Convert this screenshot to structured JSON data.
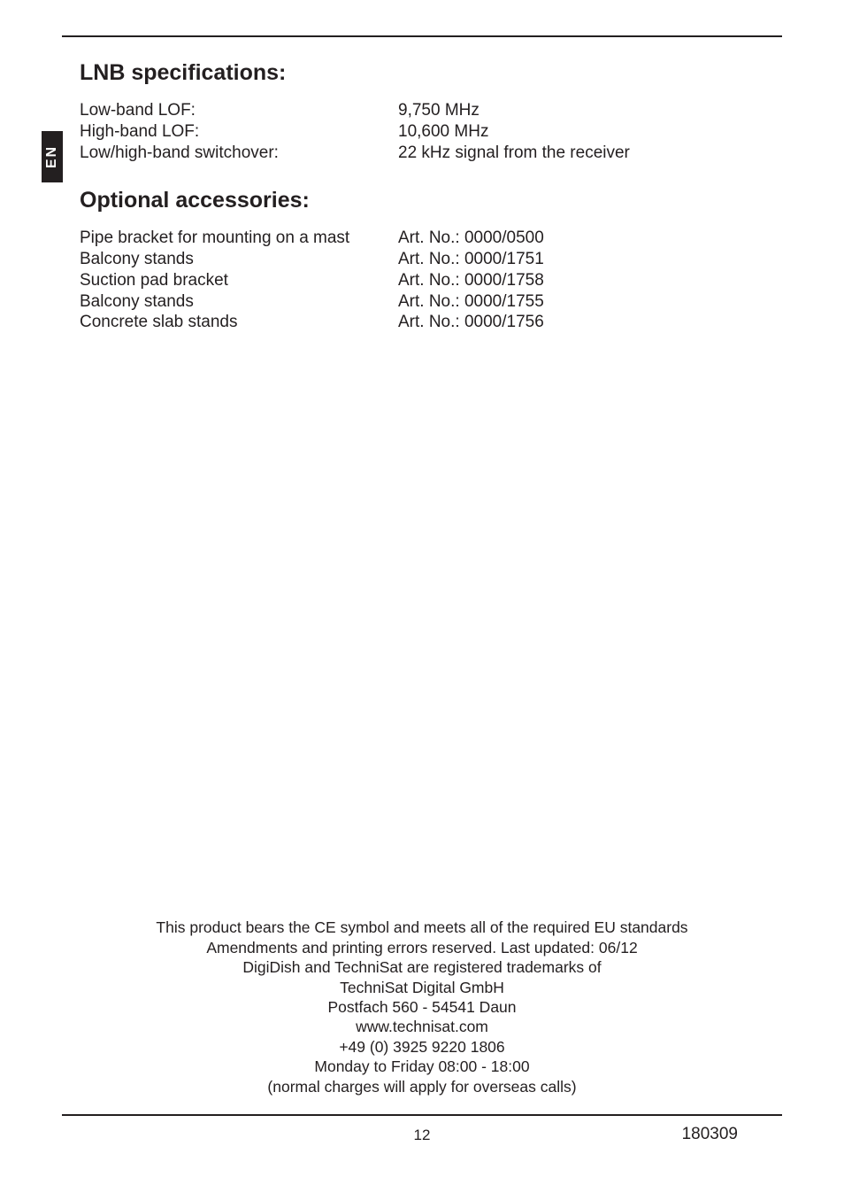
{
  "sideTab": "EN",
  "sections": {
    "lnb": {
      "title": "LNB specifications:",
      "rows": [
        {
          "label": "Low-band LOF:",
          "value": "9,750 MHz"
        },
        {
          "label": "High-band LOF:",
          "value": "10,600 MHz"
        },
        {
          "label": "Low/high-band switchover:",
          "value": "22 kHz signal from the receiver"
        }
      ]
    },
    "accessories": {
      "title": "Optional accessories:",
      "rows": [
        {
          "label": "Pipe bracket for mounting on a mast",
          "value": "Art. No.: 0000/0500"
        },
        {
          "label": "Balcony stands",
          "value": "Art. No.: 0000/1751"
        },
        {
          "label": "Suction pad bracket",
          "value": "Art. No.: 0000/1758"
        },
        {
          "label": "Balcony stands",
          "value": "Art. No.: 0000/1755"
        },
        {
          "label": "Concrete slab stands",
          "value": "Art. No.: 0000/1756"
        }
      ]
    }
  },
  "footer": {
    "lines": [
      "This product bears the CE symbol and meets all of the required EU standards",
      "Amendments and printing errors reserved. Last updated: 06/12",
      "DigiDish and TechniSat are registered trademarks of",
      "TechniSat Digital GmbH",
      "Postfach 560 - 54541 Daun",
      "www.technisat.com",
      "+49 (0) 3925 9220 1806",
      "Monday to Friday 08:00 - 18:00",
      "(normal charges will apply for overseas calls)"
    ]
  },
  "pageNumber": "12",
  "docId": "180309",
  "colors": {
    "text": "#231f20",
    "background": "#ffffff",
    "tab_bg": "#231f20",
    "tab_text": "#ffffff"
  },
  "typography": {
    "heading_fontsize_pt": 19,
    "body_fontsize_pt": 14,
    "footer_fontsize_pt": 13
  }
}
